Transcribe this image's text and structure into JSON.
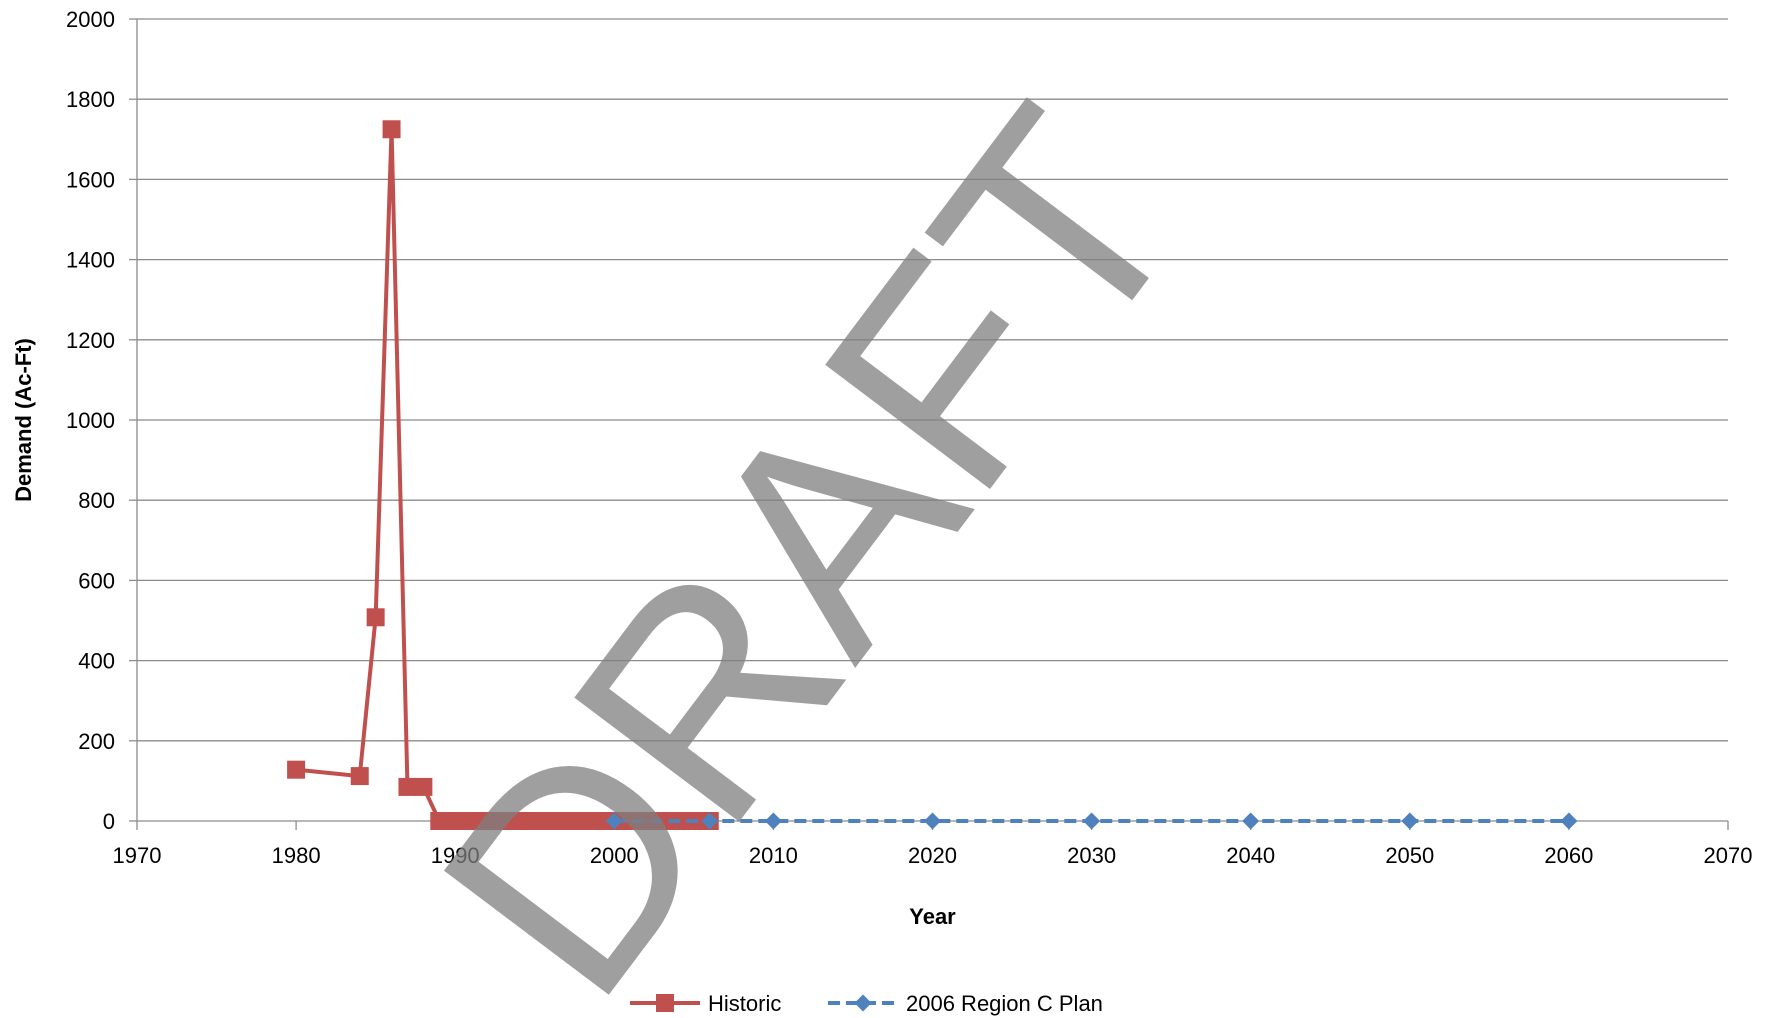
{
  "chart_data": {
    "type": "line",
    "title": "",
    "xlabel": "Year",
    "ylabel": "Demand (Ac-Ft)",
    "xlim": [
      1970,
      2070
    ],
    "ylim": [
      0,
      2000
    ],
    "x_ticks": [
      1970,
      1980,
      1990,
      2000,
      2010,
      2020,
      2030,
      2040,
      2050,
      2060,
      2070
    ],
    "y_ticks": [
      0,
      200,
      400,
      600,
      800,
      1000,
      1200,
      1400,
      1600,
      1800,
      2000
    ],
    "grid": "horizontal",
    "legend": "bottom",
    "watermark": "DRAFT",
    "series": [
      {
        "name": "Historic",
        "color": "#c0504d",
        "marker": "square",
        "line_style": "solid",
        "x": [
          1980,
          1984,
          1985,
          1986,
          1987,
          1988,
          1989,
          1990,
          1991,
          1992,
          1993,
          1994,
          1995,
          1996,
          1997,
          1998,
          1999,
          2000,
          2001,
          2002,
          2003,
          2004,
          2005,
          2006
        ],
        "y": [
          128,
          112,
          508,
          1725,
          85,
          85,
          0,
          0,
          0,
          0,
          0,
          0,
          0,
          0,
          0,
          0,
          0,
          0,
          0,
          0,
          0,
          0,
          0,
          0
        ]
      },
      {
        "name": "2006 Region C Plan",
        "color": "#4f81bd",
        "marker": "diamond",
        "line_style": "dashed",
        "x": [
          2000,
          2006,
          2010,
          2020,
          2030,
          2040,
          2050,
          2060
        ],
        "y": [
          0,
          0,
          0,
          0,
          0,
          0,
          0,
          0
        ]
      }
    ]
  }
}
